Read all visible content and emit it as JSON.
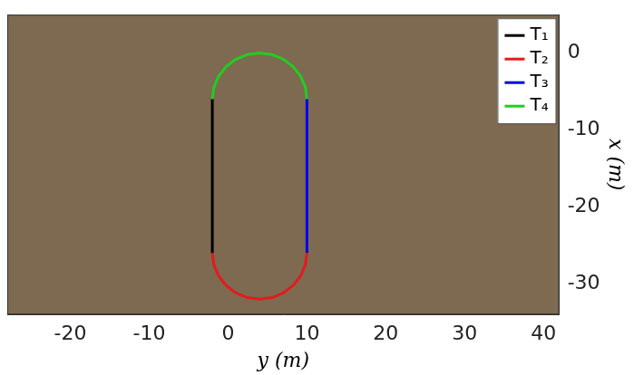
{
  "chart_data": {
    "type": "line",
    "x_label": "y (m)",
    "y_label": "x (m)",
    "xlim": [
      -28,
      42
    ],
    "xticks": [
      -20,
      -10,
      0,
      10,
      20,
      30,
      40
    ],
    "ylim": [
      -34,
      5
    ],
    "yticks": [
      -30,
      -20,
      -10,
      0
    ],
    "grid": false,
    "legend": "upper right",
    "series": [
      {
        "name": "T₁",
        "color": "#000000",
        "x": [
          -2,
          -2
        ],
        "values": [
          -6,
          -26
        ]
      },
      {
        "name": "T₂",
        "color": "#e41a1c",
        "x": [
          -2,
          -1.8,
          -1.2,
          -0.24,
          1,
          2.45,
          4,
          5.55,
          7,
          8.24,
          9.2,
          9.8,
          10
        ],
        "values": [
          -26,
          -27.55,
          -29,
          -30.24,
          -31.2,
          -31.8,
          -32,
          -31.8,
          -31.2,
          -30.24,
          -29,
          -27.55,
          -26
        ]
      },
      {
        "name": "T₃",
        "color": "#0000ee",
        "x": [
          10,
          10
        ],
        "values": [
          -26,
          -6
        ]
      },
      {
        "name": "T₄",
        "color": "#22cc22",
        "x": [
          -2,
          -1.8,
          -1.2,
          -0.24,
          1,
          2.45,
          4,
          5.55,
          7,
          8.24,
          9.2,
          9.8,
          10
        ],
        "values": [
          -6,
          -4.45,
          -3,
          -1.76,
          -0.8,
          -0.2,
          0,
          -0.2,
          -0.8,
          -1.76,
          -3,
          -4.45,
          -6
        ]
      }
    ]
  }
}
